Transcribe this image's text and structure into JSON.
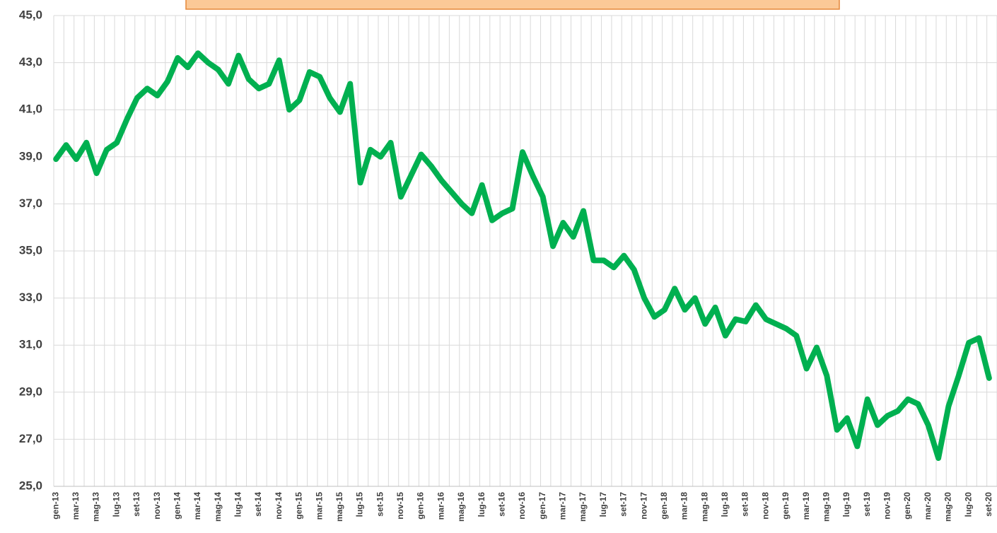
{
  "chart_data": {
    "type": "line",
    "categories": [
      "gen-13",
      null,
      "mar-13",
      null,
      "mag-13",
      null,
      "lug-13",
      null,
      "set-13",
      null,
      "nov-13",
      null,
      "gen-14",
      null,
      "mar-14",
      null,
      "mag-14",
      null,
      "lug-14",
      null,
      "set-14",
      null,
      "nov-14",
      null,
      "gen-15",
      null,
      "mar-15",
      null,
      "mag-15",
      null,
      "lug-15",
      null,
      "set-15",
      null,
      "nov-15",
      null,
      "gen-16",
      null,
      "mar-16",
      null,
      "mag-16",
      null,
      "lug-16",
      null,
      "set-16",
      null,
      "nov-16",
      null,
      "gen-17",
      null,
      "mar-17",
      null,
      "mag-17",
      null,
      "lug-17",
      null,
      "set-17",
      null,
      "nov-17",
      null,
      "gen-18",
      null,
      "mar-18",
      null,
      "mag-18",
      null,
      "lug-18",
      null,
      "set-18",
      null,
      "nov-18",
      null,
      "gen-19",
      null,
      "mar-19",
      null,
      "mag-19",
      null,
      "lug-19",
      null,
      "set-19",
      null,
      "nov-19",
      null,
      "gen-20",
      null,
      "mar-20",
      null,
      "mag-20",
      null,
      "lug-20",
      null,
      "set-20"
    ],
    "values": [
      38.9,
      39.5,
      38.9,
      39.6,
      38.3,
      39.3,
      39.6,
      40.6,
      41.5,
      41.9,
      41.6,
      42.2,
      43.2,
      42.8,
      43.4,
      43.0,
      42.7,
      42.1,
      43.3,
      42.3,
      41.9,
      42.1,
      43.1,
      41.0,
      41.4,
      42.6,
      42.4,
      41.5,
      40.9,
      42.1,
      37.9,
      39.3,
      39.0,
      39.6,
      37.3,
      38.2,
      39.1,
      38.6,
      38.0,
      37.5,
      37.0,
      36.6,
      37.8,
      36.3,
      36.6,
      36.8,
      39.2,
      38.2,
      37.3,
      35.2,
      36.2,
      35.6,
      36.7,
      34.6,
      34.6,
      34.3,
      34.8,
      34.2,
      33.0,
      32.2,
      32.5,
      33.4,
      32.5,
      33.0,
      31.9,
      32.6,
      31.4,
      32.1,
      32.0,
      32.7,
      32.1,
      31.9,
      31.7,
      31.4,
      30.0,
      30.9,
      29.7,
      27.4,
      27.9,
      26.7,
      28.7,
      27.6,
      28.0,
      28.2,
      28.7,
      28.5,
      27.6,
      26.2,
      28.4,
      29.7,
      31.1,
      31.3,
      29.6
    ],
    "color": "#00b050",
    "ylim": [
      25,
      45
    ],
    "yticks": [
      {
        "value": 25,
        "label": "25,0"
      },
      {
        "value": 27,
        "label": "27,0"
      },
      {
        "value": 29,
        "label": "29,0"
      },
      {
        "value": 31,
        "label": "31,0"
      },
      {
        "value": 33,
        "label": "33,0"
      },
      {
        "value": 35,
        "label": "35,0"
      },
      {
        "value": 37,
        "label": "37,0"
      },
      {
        "value": 39,
        "label": "39,0"
      },
      {
        "value": 41,
        "label": "41,0"
      },
      {
        "value": 43,
        "label": "43,0"
      },
      {
        "value": 45,
        "label": "45,0"
      }
    ],
    "grid": true
  }
}
